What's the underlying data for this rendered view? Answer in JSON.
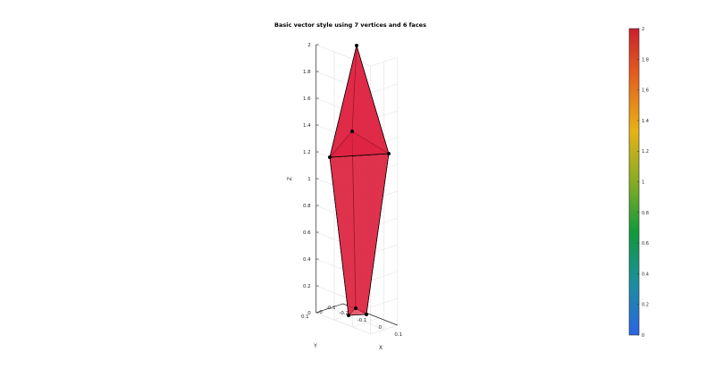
{
  "chart_data": {
    "type": "3d-patch",
    "title": "Basic vector style using 7 vertices and 6 faces",
    "xlabel": "X",
    "ylabel": "Y",
    "zlabel": "Z",
    "xlim": [
      -0.2,
      0.1
    ],
    "ylim": [
      -0.1,
      0.1
    ],
    "zlim": [
      0,
      2
    ],
    "xticks": [
      "-0.2",
      "-0.1",
      "0",
      "0.1"
    ],
    "yticks": [
      "-0.1",
      "0",
      "0.1"
    ],
    "zticks": [
      "0",
      "0.2",
      "0.4",
      "0.6",
      "0.8",
      "1",
      "1.2",
      "1.4",
      "1.6",
      "1.8",
      "2"
    ],
    "grid": true,
    "vertex_count": 7,
    "face_count": 6,
    "vertices_z": [
      0,
      0,
      0,
      1.2,
      1.2,
      1.2,
      2
    ],
    "face_color": "#dc1e3c",
    "edge_color": "#000000",
    "colorbar": {
      "min": 0,
      "max": 2,
      "ticks": [
        "0",
        "0.2",
        "0.4",
        "0.6",
        "0.8",
        "1",
        "1.2",
        "1.4",
        "1.6",
        "1.8",
        "2"
      ],
      "colors": [
        "#2a64e6",
        "#1b8fa0",
        "#0f9a3c",
        "#86ad22",
        "#e8b214",
        "#e6661c",
        "#cc1f2e"
      ]
    }
  }
}
